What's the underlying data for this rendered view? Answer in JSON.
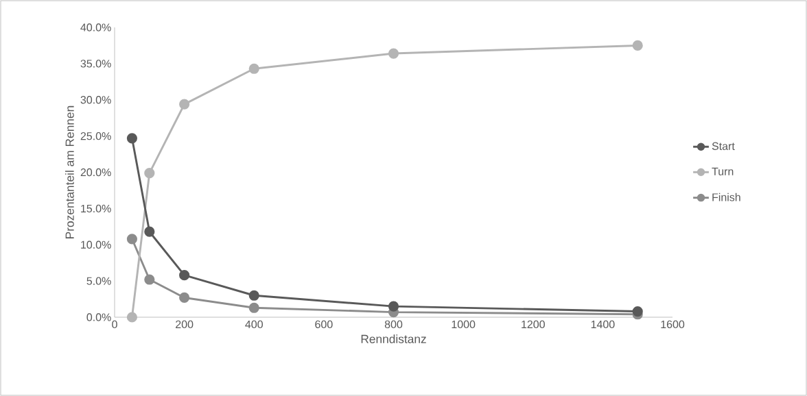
{
  "chart_data": {
    "type": "line",
    "xlabel": "Renndistanz",
    "ylabel": "Prozentanteil am Rennen",
    "x": [
      50,
      100,
      200,
      400,
      800,
      1500
    ],
    "series": [
      {
        "name": "Start",
        "color": "#595959",
        "values": [
          24.7,
          11.8,
          5.8,
          3.0,
          1.5,
          0.8
        ]
      },
      {
        "name": "Turn",
        "color": "#b4b4b4",
        "values": [
          0.0,
          19.9,
          29.4,
          34.3,
          36.4,
          37.5
        ]
      },
      {
        "name": "Finish",
        "color": "#8c8c8c",
        "values": [
          10.8,
          5.2,
          2.7,
          1.3,
          0.7,
          0.4
        ]
      }
    ],
    "xlim": [
      0,
      1600
    ],
    "xticks": [
      0,
      200,
      400,
      600,
      800,
      1000,
      1200,
      1400,
      1600
    ],
    "ylim": [
      0,
      40
    ],
    "yticks": [
      {
        "value": 0,
        "label": "0.0%"
      },
      {
        "value": 5,
        "label": "5.0%"
      },
      {
        "value": 10,
        "label": "10.0%"
      },
      {
        "value": 15,
        "label": "15.0%"
      },
      {
        "value": 20,
        "label": "20.0%"
      },
      {
        "value": 25,
        "label": "25.0%"
      },
      {
        "value": 30,
        "label": "30.0%"
      },
      {
        "value": 35,
        "label": "35.0%"
      },
      {
        "value": 40,
        "label": "40.0%"
      }
    ],
    "legend": "right",
    "marker": "circle",
    "line_style": "solid",
    "grid": false
  }
}
